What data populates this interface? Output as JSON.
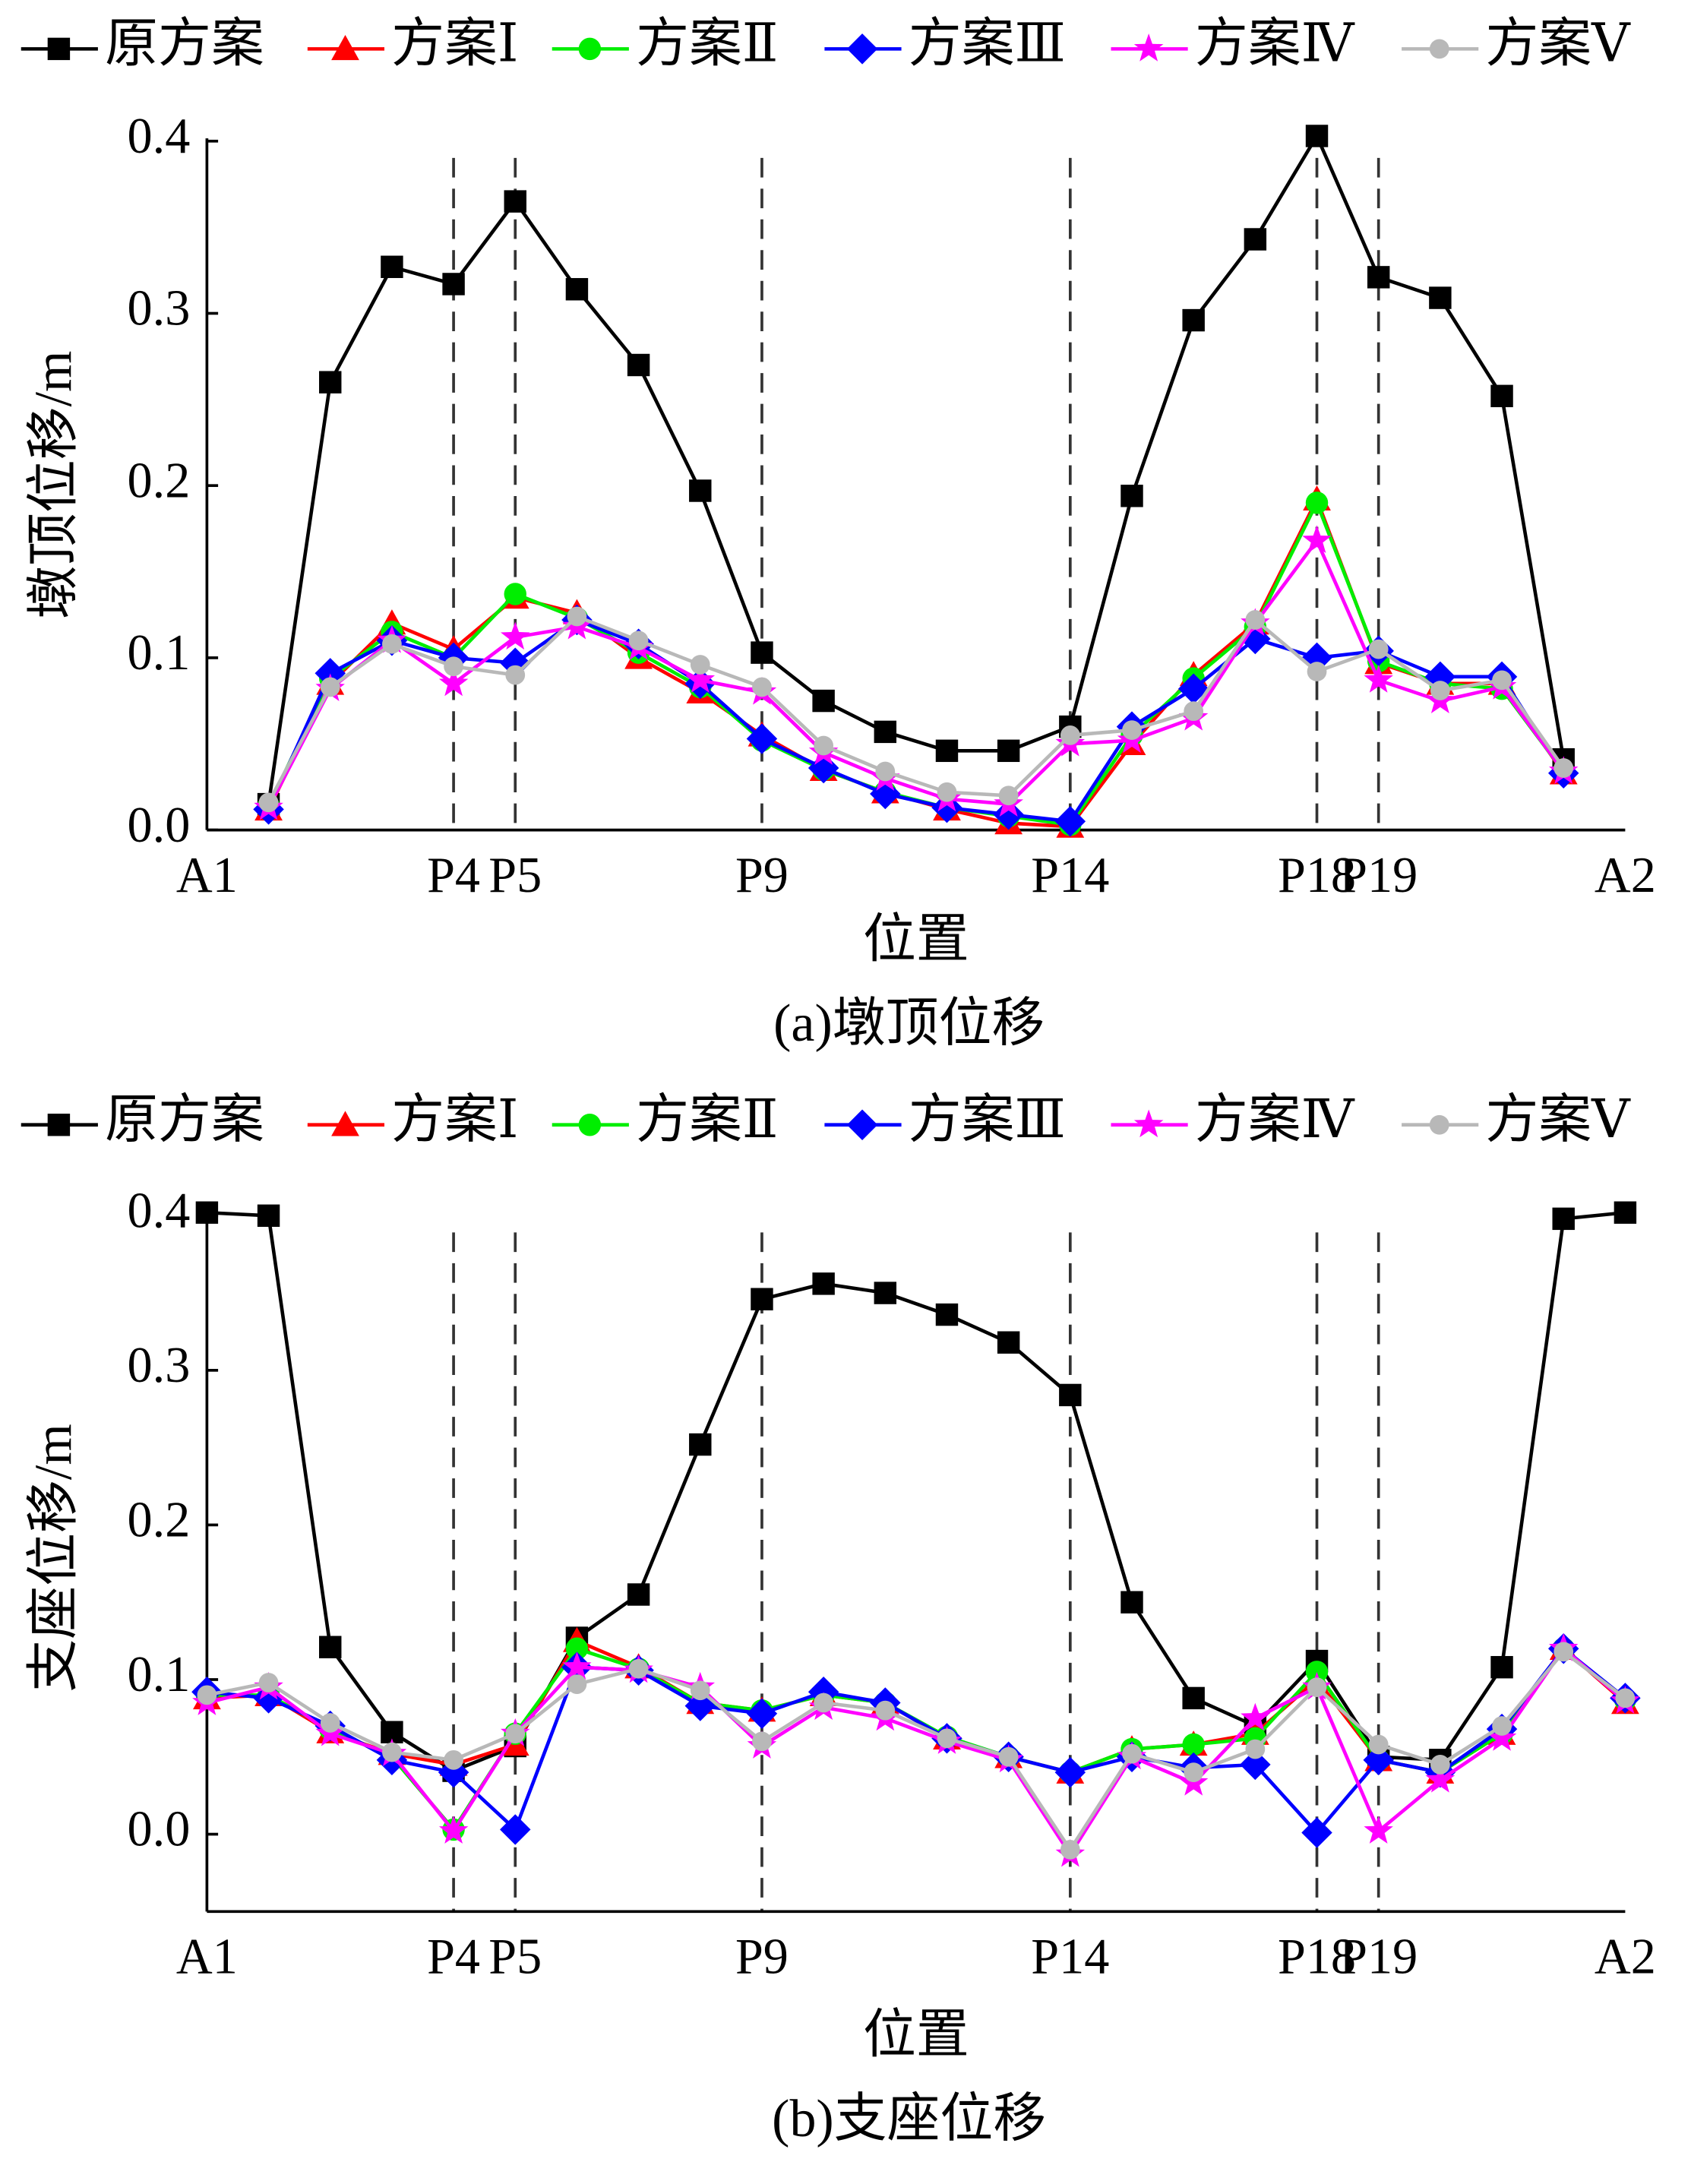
{
  "chart_data": [
    {
      "type": "line",
      "caption": "(a)墩顶位移",
      "xlabel": "位置",
      "ylabel": "墩顶位移/m",
      "x": [
        1,
        2,
        3,
        4,
        5,
        6,
        7,
        8,
        9,
        10,
        11,
        12,
        13,
        14,
        15,
        16,
        17,
        18,
        19,
        20,
        21,
        22
      ],
      "xlim": [
        0,
        23
      ],
      "xticks": [
        {
          "value": 0,
          "label": "A1"
        },
        {
          "value": 4,
          "label": "P4"
        },
        {
          "value": 5,
          "label": "P5"
        },
        {
          "value": 9,
          "label": "P9"
        },
        {
          "value": 14,
          "label": "P14"
        },
        {
          "value": 18,
          "label": "P18"
        },
        {
          "value": 19,
          "label": "P19"
        },
        {
          "value": 23,
          "label": "A2"
        }
      ],
      "ylim": [
        0,
        0.4
      ],
      "yticks": [
        {
          "value": 0,
          "label": "0.0"
        },
        0.1,
        0.2,
        0.3,
        0.4
      ],
      "series": [
        {
          "name": "原方案",
          "color": "#000000",
          "marker": "square",
          "values": [
            0.015,
            0.26,
            0.327,
            0.317,
            0.365,
            0.314,
            0.27,
            0.197,
            0.103,
            0.075,
            0.057,
            0.046,
            0.046,
            0.06,
            0.194,
            0.296,
            0.343,
            0.403,
            0.321,
            0.309,
            0.252,
            0.041
          ]
        },
        {
          "name": "方案Ⅰ",
          "color": "#ff0000",
          "marker": "triangle",
          "values": [
            0.012,
            0.085,
            0.12,
            0.105,
            0.135,
            0.126,
            0.1,
            0.08,
            0.055,
            0.035,
            0.022,
            0.012,
            0.004,
            0.002,
            0.05,
            0.09,
            0.12,
            0.192,
            0.097,
            0.085,
            0.085,
            0.033
          ]
        },
        {
          "name": "方案Ⅱ",
          "color": "#00ee00",
          "marker": "circle",
          "values": [
            0.014,
            0.088,
            0.115,
            0.1,
            0.137,
            0.123,
            0.103,
            0.083,
            0.052,
            0.035,
            0.022,
            0.013,
            0.008,
            0.003,
            0.055,
            0.088,
            0.118,
            0.19,
            0.098,
            0.085,
            0.082,
            0.034
          ]
        },
        {
          "name": "方案Ⅲ",
          "color": "#0000ff",
          "marker": "diamond",
          "values": [
            0.012,
            0.091,
            0.11,
            0.1,
            0.097,
            0.122,
            0.108,
            0.085,
            0.053,
            0.036,
            0.021,
            0.013,
            0.009,
            0.005,
            0.06,
            0.082,
            0.111,
            0.1,
            0.104,
            0.089,
            0.089,
            0.033
          ]
        },
        {
          "name": "方案Ⅳ",
          "color": "#ff00ff",
          "marker": "star",
          "values": [
            0.013,
            0.082,
            0.11,
            0.085,
            0.112,
            0.118,
            0.106,
            0.087,
            0.08,
            0.045,
            0.03,
            0.018,
            0.015,
            0.05,
            0.052,
            0.065,
            0.12,
            0.168,
            0.087,
            0.075,
            0.083,
            0.034
          ]
        },
        {
          "name": "方案Ⅴ",
          "color": "#b8b8b8",
          "marker": "dot",
          "values": [
            0.016,
            0.083,
            0.108,
            0.095,
            0.09,
            0.124,
            0.11,
            0.096,
            0.083,
            0.049,
            0.034,
            0.022,
            0.02,
            0.055,
            0.058,
            0.069,
            0.122,
            0.092,
            0.105,
            0.081,
            0.087,
            0.036
          ]
        }
      ]
    },
    {
      "type": "line",
      "caption": "(b)支座位移",
      "xlabel": "位置",
      "ylabel": "支座位移/m",
      "x": [
        0,
        1,
        2,
        3,
        4,
        5,
        6,
        7,
        8,
        9,
        10,
        11,
        12,
        13,
        14,
        15,
        16,
        17,
        18,
        19,
        20,
        21,
        22,
        23
      ],
      "xlim": [
        0,
        23
      ],
      "xticks": [
        {
          "value": 0,
          "label": "A1"
        },
        {
          "value": 4,
          "label": "P4"
        },
        {
          "value": 5,
          "label": "P5"
        },
        {
          "value": 9,
          "label": "P9"
        },
        {
          "value": 14,
          "label": "P14"
        },
        {
          "value": 18,
          "label": "P18"
        },
        {
          "value": 19,
          "label": "P19"
        },
        {
          "value": 23,
          "label": "A2"
        }
      ],
      "ylim": [
        -0.05,
        0.4
      ],
      "yticks": [
        {
          "value": 0,
          "label": "0.0"
        },
        0.1,
        0.2,
        0.3,
        0.4
      ],
      "series": [
        {
          "name": "原方案",
          "color": "#000000",
          "marker": "square",
          "values": [
            0.402,
            0.4,
            0.121,
            0.066,
            0.041,
            0.057,
            0.127,
            0.155,
            0.252,
            0.346,
            0.356,
            0.35,
            0.336,
            0.318,
            0.284,
            0.15,
            0.088,
            0.07,
            0.112,
            0.05,
            0.048,
            0.108,
            0.398,
            0.402
          ]
        },
        {
          "name": "方案Ⅰ",
          "color": "#ff0000",
          "marker": "triangle",
          "values": [
            0.088,
            0.09,
            0.066,
            0.052,
            0.045,
            0.058,
            0.125,
            0.108,
            0.085,
            0.08,
            0.09,
            0.085,
            0.062,
            0.05,
            0.04,
            0.055,
            0.058,
            0.065,
            0.1,
            0.048,
            0.04,
            0.065,
            0.12,
            0.085
          ]
        },
        {
          "name": "方案Ⅱ",
          "color": "#00ee00",
          "marker": "circle",
          "values": [
            0.09,
            0.09,
            0.068,
            0.05,
            0.003,
            0.065,
            0.12,
            0.107,
            0.085,
            0.08,
            0.09,
            0.085,
            0.063,
            0.05,
            0.04,
            0.055,
            0.058,
            0.062,
            0.105,
            0.048,
            0.04,
            0.065,
            0.12,
            0.087
          ]
        },
        {
          "name": "方案Ⅲ",
          "color": "#0000ff",
          "marker": "diamond",
          "values": [
            0.092,
            0.088,
            0.07,
            0.048,
            0.04,
            0.003,
            0.108,
            0.106,
            0.083,
            0.078,
            0.092,
            0.085,
            0.062,
            0.05,
            0.04,
            0.05,
            0.043,
            0.045,
            0.001,
            0.048,
            0.04,
            0.068,
            0.12,
            0.088
          ]
        },
        {
          "name": "方案Ⅳ",
          "color": "#ff00ff",
          "marker": "star",
          "values": [
            0.085,
            0.095,
            0.065,
            0.052,
            0.002,
            0.065,
            0.108,
            0.106,
            0.095,
            0.057,
            0.082,
            0.075,
            0.06,
            0.048,
            -0.013,
            0.05,
            0.033,
            0.075,
            0.095,
            0.002,
            0.035,
            0.062,
            0.12,
            0.086
          ]
        },
        {
          "name": "方案Ⅴ",
          "color": "#b8b8b8",
          "marker": "dot",
          "values": [
            0.09,
            0.098,
            0.072,
            0.053,
            0.048,
            0.065,
            0.097,
            0.107,
            0.093,
            0.06,
            0.085,
            0.08,
            0.062,
            0.05,
            -0.01,
            0.052,
            0.04,
            0.055,
            0.095,
            0.058,
            0.045,
            0.07,
            0.118,
            0.088
          ]
        }
      ]
    }
  ]
}
